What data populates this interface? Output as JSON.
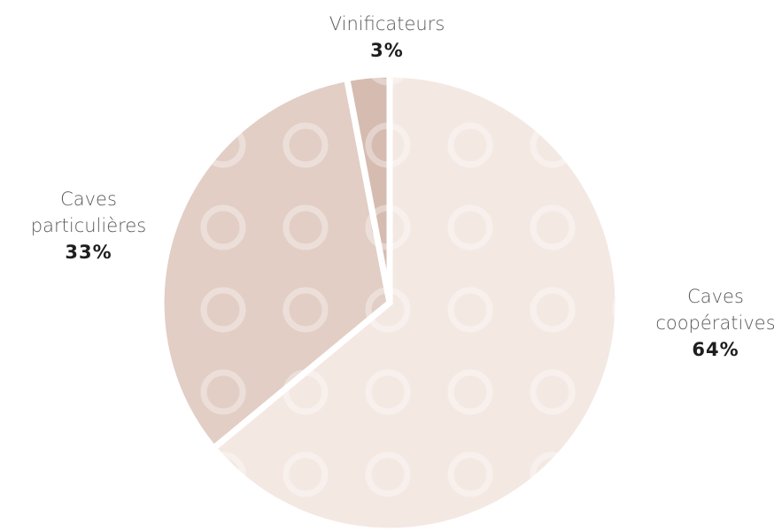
{
  "chart_data": {
    "type": "pie",
    "categories": [
      "Caves coopératives",
      "Caves particulières",
      "Vinificateurs"
    ],
    "values": [
      64,
      33,
      3
    ],
    "value_labels": [
      "64%",
      "33%",
      "3%"
    ],
    "colors": [
      "#f4e8e3",
      "#e2cec5",
      "#d6bbb0"
    ]
  }
}
